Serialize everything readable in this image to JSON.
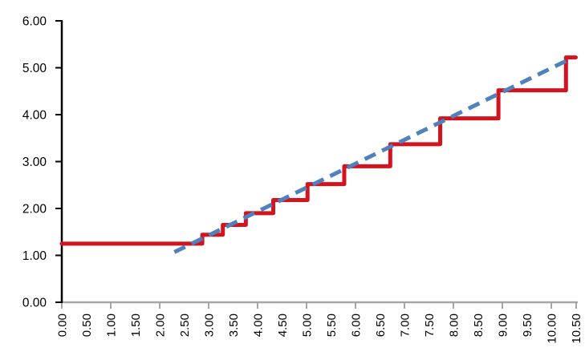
{
  "chart_data": {
    "type": "line",
    "title": "",
    "xlabel": "",
    "ylabel": "",
    "grid": "off",
    "legend": "none",
    "x_axis": {
      "min": 0,
      "max": 10.5,
      "label_interval": 0.5,
      "tick_mark_interval": 1.0,
      "label_rotation_deg": -90,
      "axis_color": "#A6A6A6",
      "tick_labels": [
        "0.00",
        "0.50",
        "1.00",
        "1.50",
        "2.00",
        "2.50",
        "3.00",
        "3.50",
        "4.00",
        "4.50",
        "5.00",
        "5.50",
        "6.00",
        "6.50",
        "7.00",
        "7.50",
        "8.00",
        "8.50",
        "9.00",
        "9.50",
        "10.00",
        "10.50"
      ]
    },
    "y_axis": {
      "min": 0,
      "max": 6,
      "tick_interval": 1.0,
      "axis_color": "#000000",
      "tick_labels": [
        "0.00",
        "1.00",
        "2.00",
        "3.00",
        "4.00",
        "5.00",
        "6.00"
      ]
    },
    "series": [
      {
        "name": "red-step-series",
        "type": "step-after",
        "style": "solid",
        "color": "#D2141E",
        "line_width": 5,
        "points": [
          [
            0.0,
            1.25
          ],
          [
            2.87,
            1.44
          ],
          [
            3.29,
            1.65
          ],
          [
            3.76,
            1.9
          ],
          [
            4.32,
            2.18
          ],
          [
            5.02,
            2.52
          ],
          [
            5.77,
            2.9
          ],
          [
            6.71,
            3.37
          ],
          [
            7.73,
            3.92
          ],
          [
            8.92,
            4.52
          ],
          [
            10.3,
            5.22
          ]
        ],
        "x_end": 10.5
      },
      {
        "name": "blue-dashed-trendline",
        "type": "line",
        "style": "dashed",
        "color": "#4F81BD",
        "line_width": 5,
        "points": [
          [
            2.3,
            1.07
          ],
          [
            10.33,
            5.16
          ]
        ]
      }
    ]
  }
}
